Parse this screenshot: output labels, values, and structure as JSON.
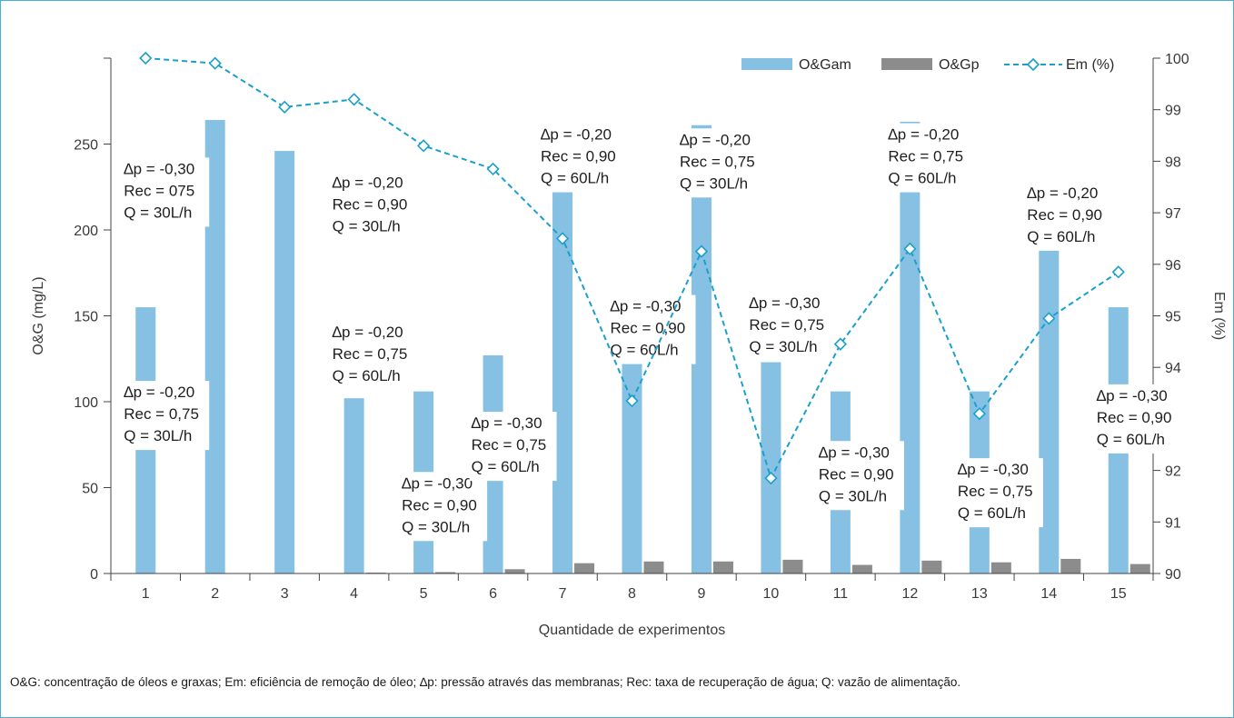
{
  "caption": "O&G: concentração de óleos e graxas; Em: eficiência de remoção de óleo; ∆p: pressão através das membranas; Rec: taxa de recuperação de água; Q: vazão de alimentação.",
  "colors": {
    "oga": "#86c1e4",
    "ogp": "#8c8c8c",
    "em": "#1aa0cc",
    "frame": "#4aaed6"
  },
  "chart_data": {
    "type": "bar",
    "xlabel": "Quantidade de experimentos",
    "ylabel": "O&G (mg/L)",
    "y2label": "Em (%)",
    "categories": [
      "1",
      "2",
      "3",
      "4",
      "5",
      "6",
      "7",
      "8",
      "9",
      "10",
      "11",
      "12",
      "13",
      "14",
      "15"
    ],
    "ylim": [
      0,
      300
    ],
    "yticks": [
      0,
      50,
      100,
      150,
      200,
      250
    ],
    "y2lim": [
      90,
      100
    ],
    "y2ticks": [
      90,
      91,
      92,
      93,
      94,
      95,
      96,
      97,
      98,
      99,
      100
    ],
    "legend_position": "top-right",
    "series": [
      {
        "name": "O&Gam",
        "type": "bar",
        "axis": "left",
        "values": [
          155,
          264,
          246,
          102,
          106,
          127,
          222,
          123,
          261,
          123,
          106,
          263,
          106,
          195,
          155
        ]
      },
      {
        "name": "O&Gp",
        "type": "bar",
        "axis": "left",
        "values": [
          0,
          0,
          0,
          0.5,
          0.8,
          2.5,
          6,
          7,
          7,
          8,
          5,
          7.5,
          6.5,
          8.5,
          5.5
        ]
      },
      {
        "name": "Em (%)",
        "type": "line",
        "axis": "right",
        "values": [
          100,
          99.9,
          99.05,
          99.2,
          98.3,
          97.85,
          96.5,
          93.35,
          96.25,
          91.85,
          94.45,
          96.3,
          93.1,
          94.95,
          95.85
        ]
      }
    ],
    "annotations": [
      {
        "category": 1,
        "level": 240,
        "lines": [
          "∆p = -0,30",
          "Rec = 075",
          "Q = 30L/h"
        ]
      },
      {
        "category": 1,
        "level": 110,
        "lines": [
          "∆p = -0,20",
          "Rec = 0,75",
          "Q = 30L/h"
        ]
      },
      {
        "category": 4,
        "level": 232,
        "lines": [
          "∆p = -0,20",
          "Rec = 0,90",
          "Q = 30L/h"
        ]
      },
      {
        "category": 4,
        "level": 145,
        "lines": [
          "∆p = -0,20",
          "Rec = 0,75",
          "Q = 60L/h"
        ]
      },
      {
        "category": 5,
        "level": 57,
        "lines": [
          "∆p = -0,30",
          "Rec = 0,90",
          "Q = 30L/h"
        ]
      },
      {
        "category": 6,
        "level": 92,
        "lines": [
          "∆p = -0,30",
          "Rec = 0,75",
          "Q = 60L/h"
        ]
      },
      {
        "category": 7,
        "level": 260,
        "lines": [
          "∆p = -0,20",
          "Rec = 0,90",
          "Q = 60L/h"
        ]
      },
      {
        "category": 8,
        "level": 160,
        "lines": [
          "∆p = -0,30",
          "Rec = 0,90",
          "Q = 60L/h"
        ]
      },
      {
        "category": 9,
        "level": 257,
        "lines": [
          "∆p = -0,20",
          "Rec = 0,75",
          "Q = 30L/h"
        ]
      },
      {
        "category": 10,
        "level": 162,
        "lines": [
          "∆p = -0,30",
          "Rec = 0,75",
          "Q = 30L/h"
        ]
      },
      {
        "category": 11,
        "level": 75,
        "lines": [
          "∆p = -0,30",
          "Rec = 0,90",
          "Q = 30L/h"
        ]
      },
      {
        "category": 12,
        "level": 260,
        "lines": [
          "∆p = -0,20",
          "Rec = 0,75",
          "Q = 60L/h"
        ]
      },
      {
        "category": 13,
        "level": 65,
        "lines": [
          "∆p = -0,30",
          "Rec = 0,75",
          "Q = 60L/h"
        ]
      },
      {
        "category": 14,
        "level": 226,
        "lines": [
          "∆p = -0,20",
          "Rec = 0,90",
          "Q = 60L/h"
        ]
      },
      {
        "category": 15,
        "level": 108,
        "lines": [
          "∆p = -0,30",
          "Rec = 0,90",
          "Q = 60L/h"
        ]
      }
    ]
  }
}
